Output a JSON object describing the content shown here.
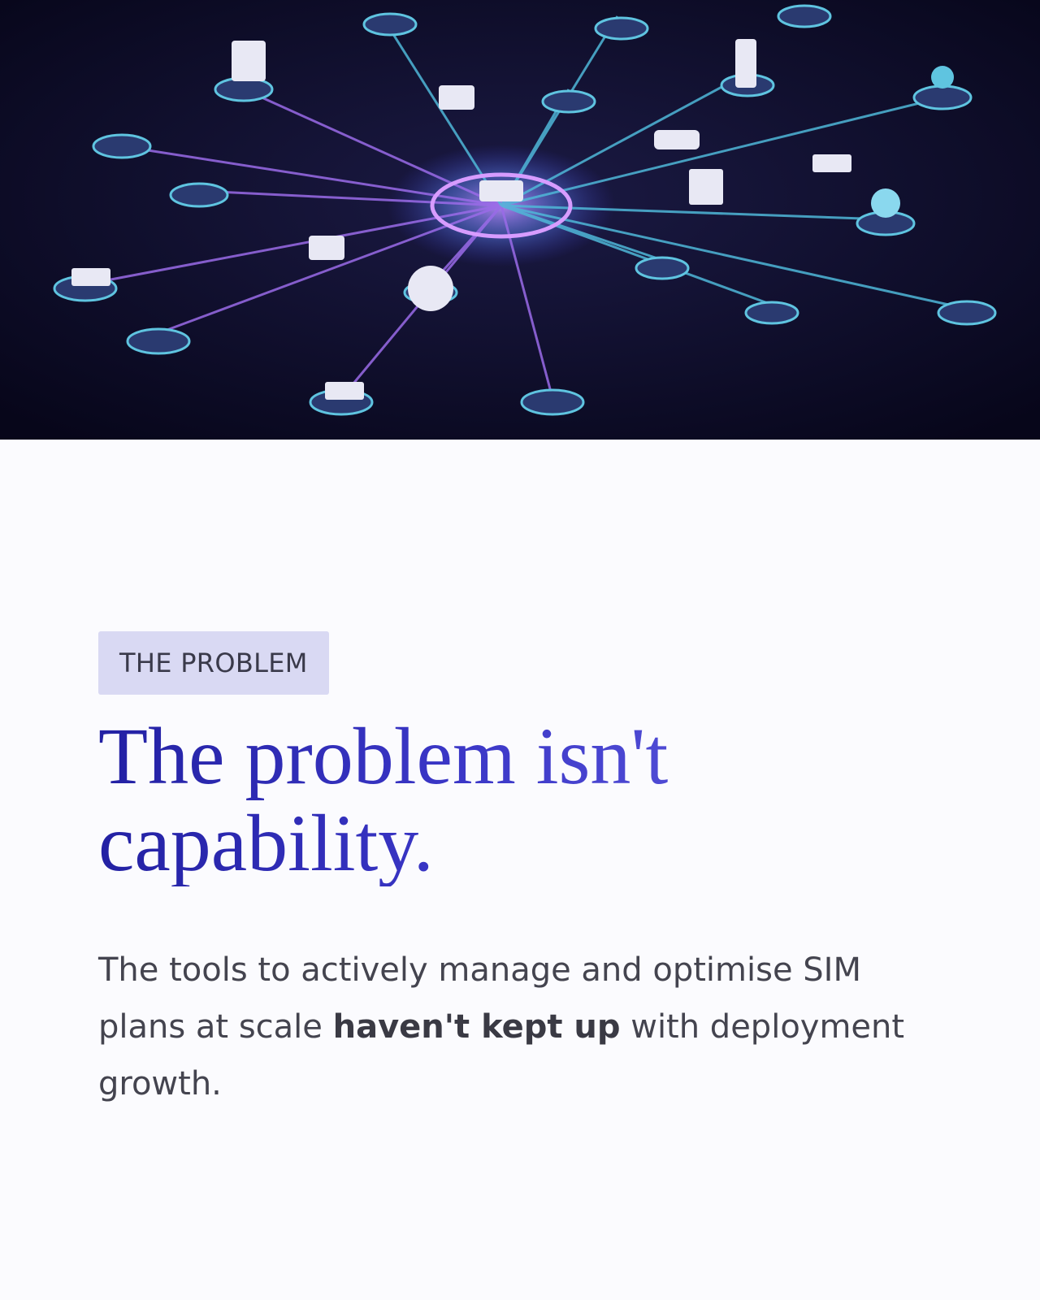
{
  "section": {
    "badge": "THE PROBLEM",
    "heading": "The problem isn't capability.",
    "body": {
      "before": "The tools to actively manage and optimise SIM plans at scale ",
      "strong": "haven't kept up",
      "after": " with deployment growth."
    }
  }
}
